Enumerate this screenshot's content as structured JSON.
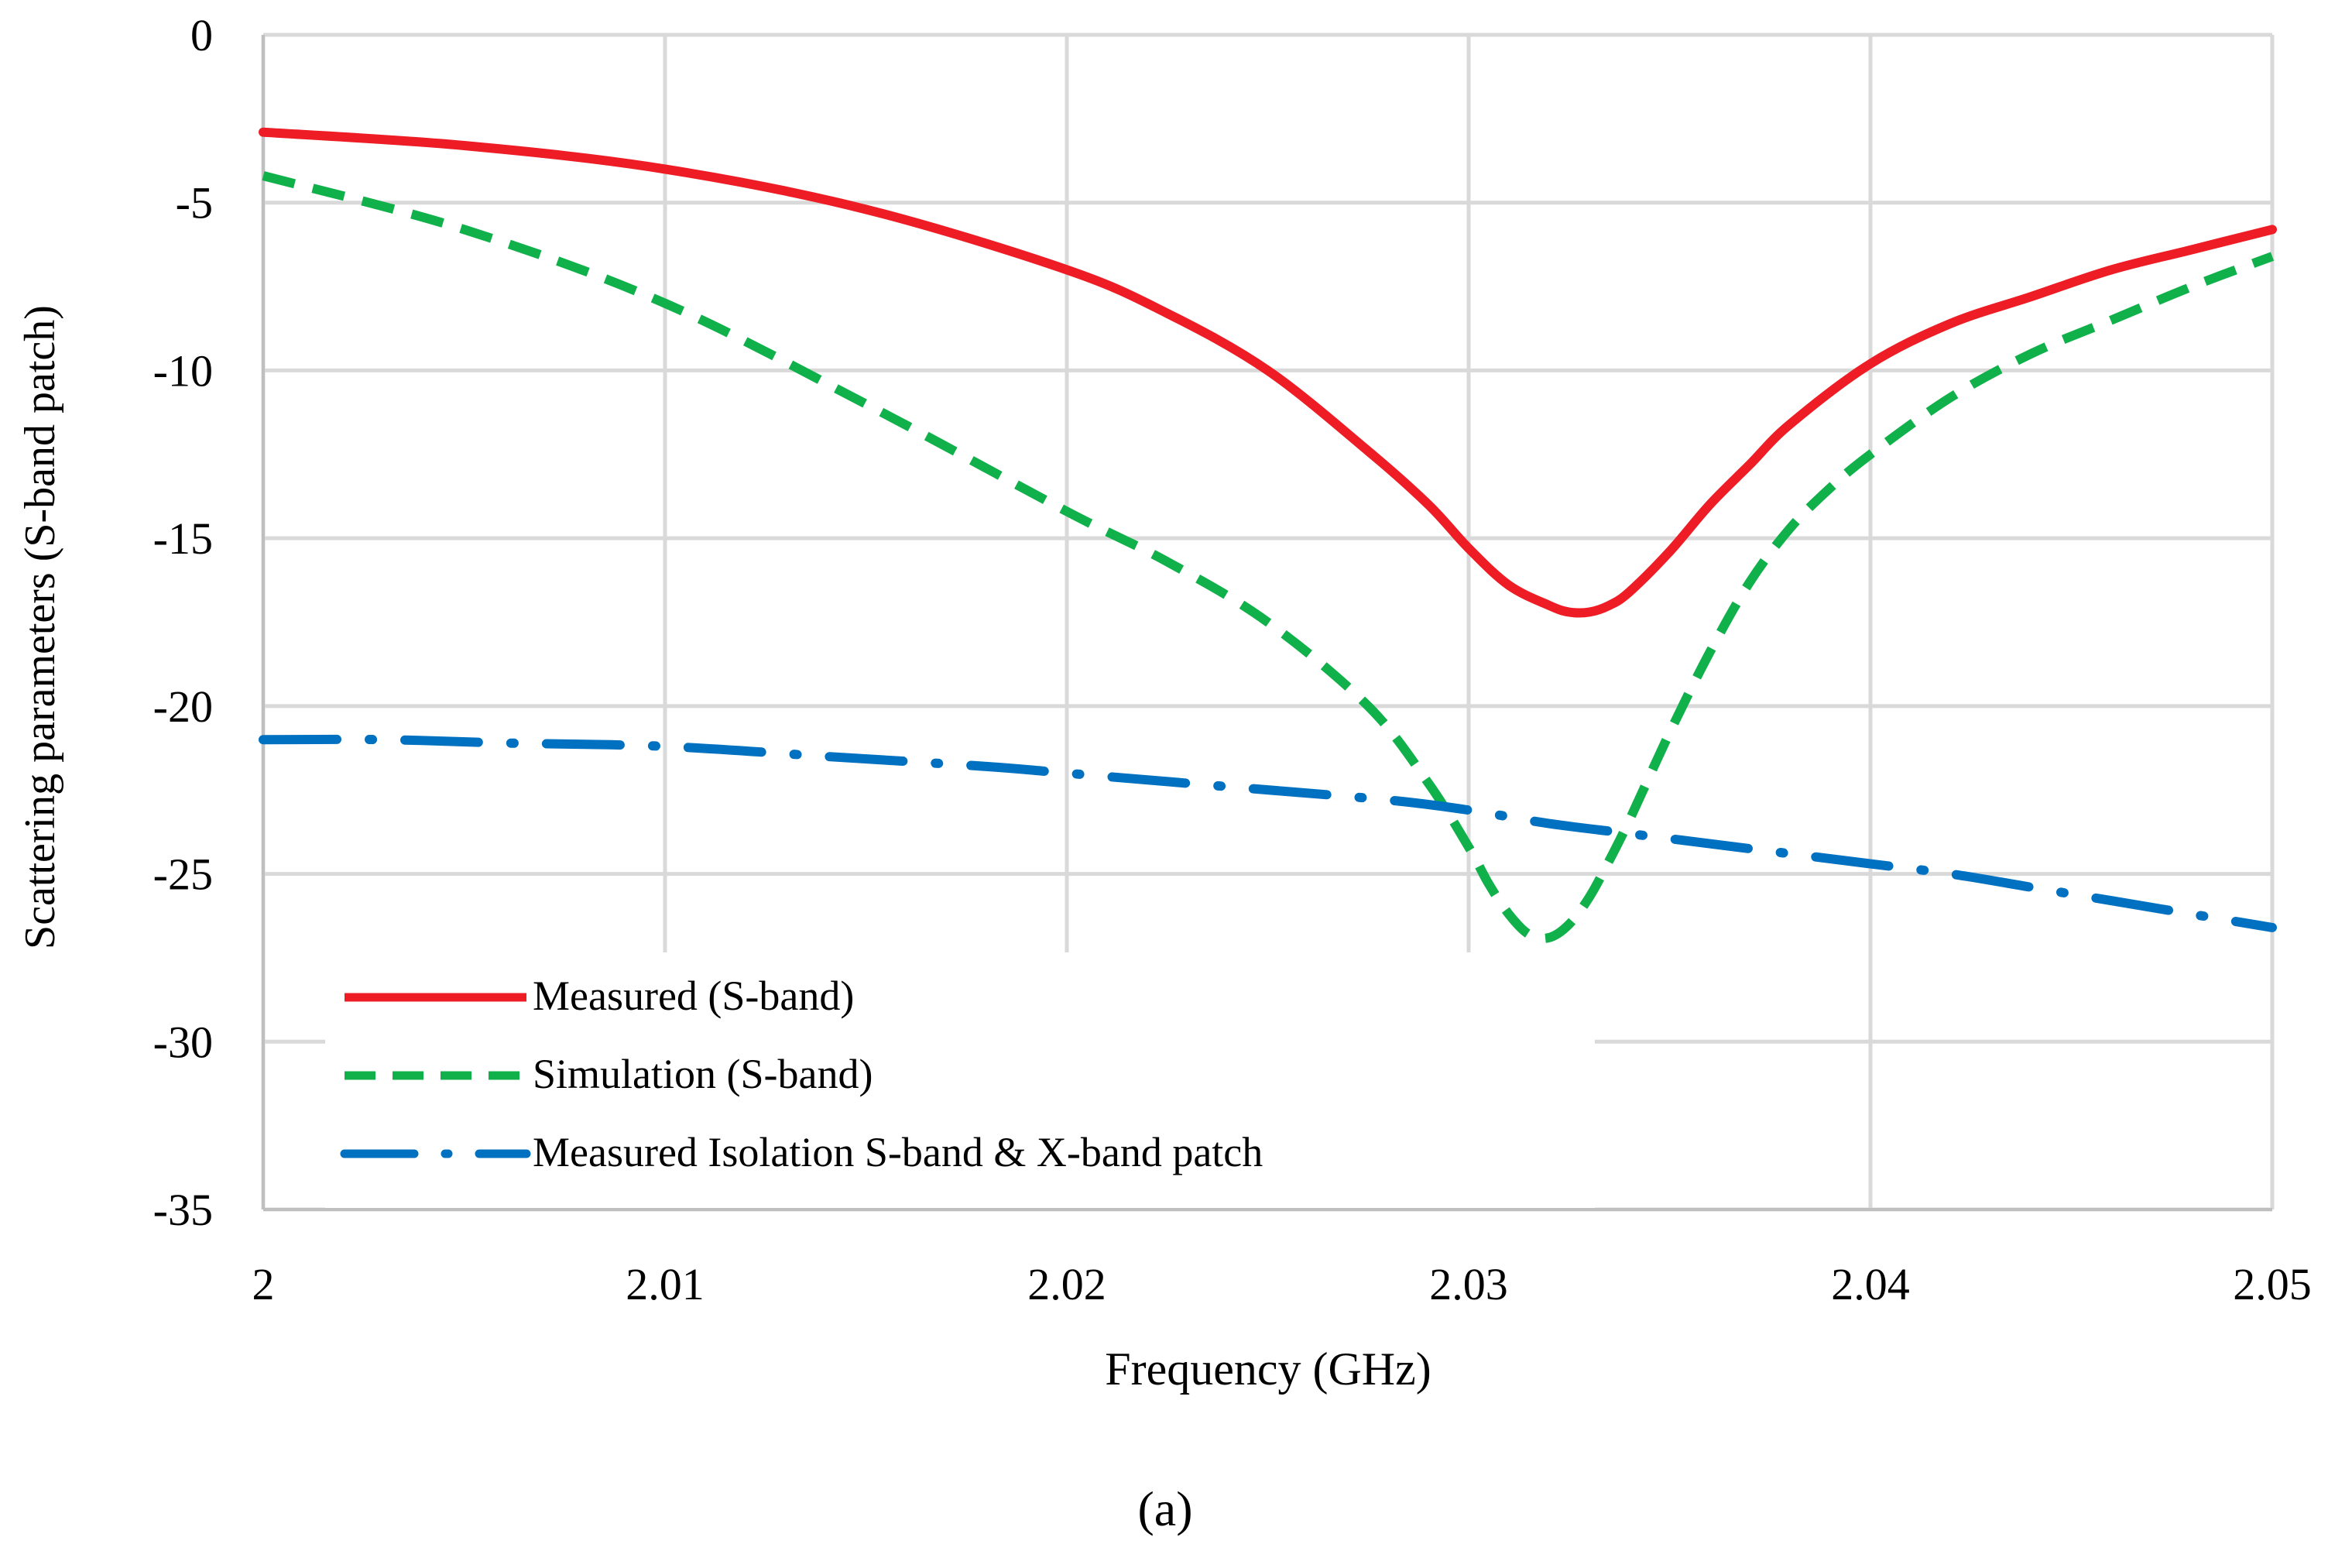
{
  "chart_data": {
    "type": "line",
    "title": "",
    "xlabel": "Frequency (GHz)",
    "ylabel": "Scattering parameters (S-band patch)",
    "caption": "(a)",
    "xlim": [
      2.0,
      2.05
    ],
    "ylim": [
      -35,
      0
    ],
    "xticks": [
      2.0,
      2.01,
      2.02,
      2.03,
      2.04,
      2.05
    ],
    "xtick_labels": [
      "2",
      "2.01",
      "2.02",
      "2.03",
      "2.04",
      "2.05"
    ],
    "yticks": [
      0,
      -5,
      -10,
      -15,
      -20,
      -25,
      -30,
      -35
    ],
    "ytick_labels": [
      "0",
      "-5",
      "-10",
      "-15",
      "-20",
      "-25",
      "-30",
      "-35"
    ],
    "grid": true,
    "legend_position": "bottom-left",
    "series": [
      {
        "name": "Measured (S-band)",
        "color": "#ee1c25",
        "style": "solid",
        "x": [
          2.0,
          2.005,
          2.01,
          2.015,
          2.02,
          2.0225,
          2.025,
          2.0275,
          2.029,
          2.03,
          2.031,
          2.032,
          2.0325,
          2.033,
          2.0335,
          2.034,
          2.035,
          2.036,
          2.037,
          2.038,
          2.04,
          2.042,
          2.044,
          2.046,
          2.048,
          2.05
        ],
        "y": [
          -2.9,
          -3.3,
          -4.0,
          -5.2,
          -7.0,
          -8.3,
          -10.0,
          -12.4,
          -14.0,
          -15.3,
          -16.4,
          -17.0,
          -17.2,
          -17.2,
          -17.0,
          -16.6,
          -15.4,
          -14.0,
          -12.8,
          -11.6,
          -9.8,
          -8.6,
          -7.8,
          -7.0,
          -6.4,
          -5.8
        ]
      },
      {
        "name": "Simulation (S-band)",
        "color": "#10b04a",
        "style": "dashed",
        "x": [
          2.0,
          2.005,
          2.01,
          2.015,
          2.02,
          2.0225,
          2.025,
          2.0275,
          2.029,
          2.03,
          2.0305,
          2.031,
          2.0315,
          2.032,
          2.0325,
          2.033,
          2.0335,
          2.034,
          2.035,
          2.036,
          2.037,
          2.038,
          2.039,
          2.04,
          2.042,
          2.044,
          2.046,
          2.048,
          2.05
        ],
        "y": [
          -4.2,
          -5.8,
          -8.0,
          -11.0,
          -14.2,
          -15.7,
          -17.5,
          -20.0,
          -22.3,
          -24.2,
          -25.3,
          -26.2,
          -26.8,
          -26.9,
          -26.5,
          -25.7,
          -24.6,
          -23.4,
          -20.8,
          -18.4,
          -16.3,
          -14.7,
          -13.5,
          -12.5,
          -10.8,
          -9.5,
          -8.5,
          -7.5,
          -6.6
        ]
      },
      {
        "name": "Measured Isolation S-band & X-band patch",
        "color": "#0070c0",
        "style": "dash-dot",
        "x": [
          2.0,
          2.003,
          2.006,
          2.01,
          2.014,
          2.018,
          2.02,
          2.024,
          2.028,
          2.03,
          2.032,
          2.034,
          2.036,
          2.038,
          2.04,
          2.042,
          2.044,
          2.046,
          2.048,
          2.05
        ],
        "y": [
          -21.0,
          -21.0,
          -21.1,
          -21.2,
          -21.5,
          -21.8,
          -22.0,
          -22.4,
          -22.8,
          -23.1,
          -23.5,
          -23.8,
          -24.1,
          -24.4,
          -24.7,
          -25.0,
          -25.4,
          -25.8,
          -26.2,
          -26.6
        ]
      }
    ]
  }
}
